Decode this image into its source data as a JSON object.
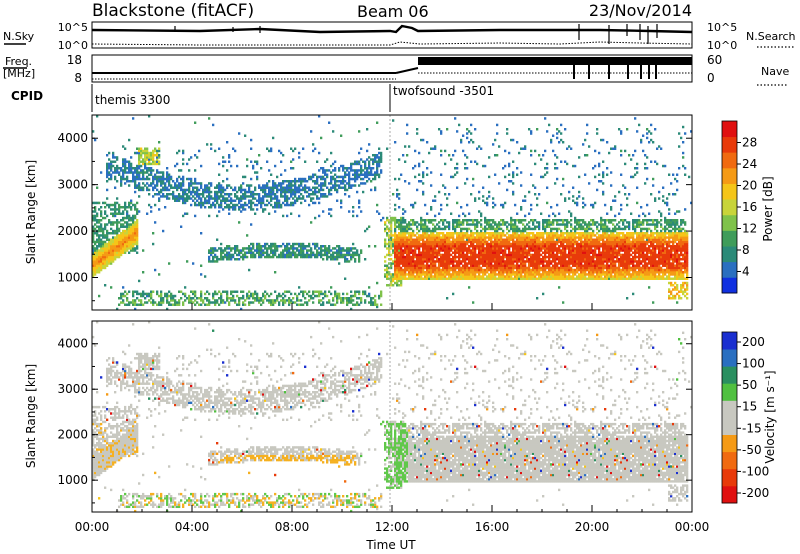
{
  "header": {
    "station": "Blackstone (fitACF)",
    "beam": "Beam 06",
    "date": "23/Nov/2014"
  },
  "nsky_panel": {
    "left_label": "N.Sky",
    "left_ticks": [
      "10^5",
      "10^0"
    ],
    "right_ticks": [
      "10^5",
      "10^0"
    ],
    "right_label": "N.Search"
  },
  "freq_panel": {
    "left_label_1": "Freq.",
    "left_label_2": "[MHz]",
    "left_ticks": [
      "18",
      "8"
    ],
    "right_ticks": [
      "60",
      "0"
    ],
    "right_label": "Nave"
  },
  "cpid": {
    "label": "CPID",
    "modes": [
      {
        "name": "themis 3300",
        "start_hour": 0
      },
      {
        "name": "twofsound -3501",
        "start_hour": 12
      }
    ]
  },
  "colors": {
    "power_scale": [
      "#1030e0",
      "#2a6fc0",
      "#2b8a78",
      "#3f9c5a",
      "#7fc24a",
      "#c8d43a",
      "#f5c518",
      "#f59a15",
      "#f06a10",
      "#e83a0a",
      "#e01010"
    ],
    "velocity_scale": [
      "#1a2fd0",
      "#2a6fc0",
      "#2a8f60",
      "#50c040",
      "#c8c8c0",
      "#c8c8c0",
      "#f5c518",
      "#f59a15",
      "#f06a10",
      "#e83a0a",
      "#e01010"
    ]
  },
  "chart_data": [
    {
      "type": "heatmap",
      "name": "power",
      "ylabel": "Slant Range [km]",
      "ylim": [
        300,
        4500
      ],
      "yticks": [
        "1000",
        "2000",
        "3000",
        "4000"
      ],
      "xlim": [
        0,
        24
      ],
      "colorbar_label": "Power [dB]",
      "colorbar_range": [
        0,
        32
      ],
      "colorbar_ticks": [
        "4",
        "8",
        "12",
        "16",
        "20",
        "24",
        "28"
      ],
      "features": [
        {
          "t0": 0.0,
          "t1": 1.5,
          "r0": 1000,
          "r1": 2200,
          "level": 0.7
        },
        {
          "t0": 1.5,
          "t1": 11.5,
          "r0": 2500,
          "r1": 3600,
          "level": 0.15
        },
        {
          "t0": 4.5,
          "t1": 10.5,
          "r0": 1300,
          "r1": 1700,
          "level": 0.2
        },
        {
          "t0": 12.0,
          "t1": 23.8,
          "r0": 900,
          "r1": 2100,
          "level": 0.7
        }
      ]
    },
    {
      "type": "heatmap",
      "name": "velocity",
      "ylabel": "Slant Range [km]",
      "ylim": [
        300,
        4500
      ],
      "yticks": [
        "1000",
        "2000",
        "3000",
        "4000"
      ],
      "xlim": [
        0,
        24
      ],
      "xlabel": "Time UT",
      "xticks": [
        "00:00",
        "04:00",
        "08:00",
        "12:00",
        "16:00",
        "20:00",
        "00:00"
      ],
      "colorbar_label": "Velocity [m s⁻¹]",
      "colorbar_ticks": [
        "200",
        "100",
        "50",
        "15",
        "-15",
        "-50",
        "-100",
        "-200"
      ],
      "features": [
        {
          "t0": 0.0,
          "t1": 3.0,
          "r0": 1200,
          "r1": 2200,
          "class": "ground-scatter"
        },
        {
          "t0": 5.0,
          "t1": 10.5,
          "r0": 1100,
          "r1": 1500,
          "class": "-50"
        },
        {
          "t0": 11.5,
          "t1": 12.5,
          "r0": 800,
          "r1": 2200,
          "class": "50"
        },
        {
          "t0": 12.0,
          "t1": 23.8,
          "r0": 1100,
          "r1": 2200,
          "class": "ground-scatter"
        }
      ]
    }
  ]
}
